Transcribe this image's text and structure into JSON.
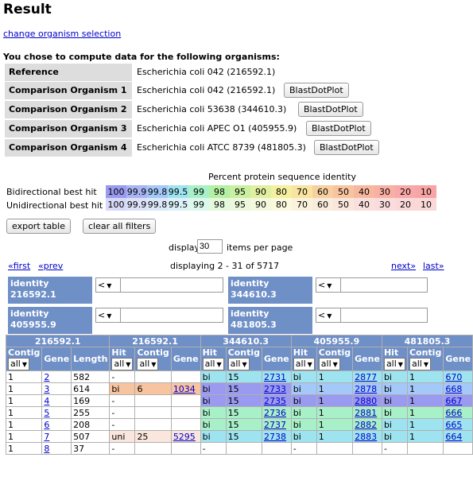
{
  "title": "Result",
  "change_link": "change organism selection",
  "intro": "You chose to compute data for the following organisms:",
  "organisms": [
    {
      "label": "Reference",
      "name": "Escherichia coli 042 (216592.1)",
      "button": ""
    },
    {
      "label": "Comparison Organism 1",
      "name": "Escherichia coli 042 (216592.1)",
      "button": "BlastDotPlot"
    },
    {
      "label": "Comparison Organism 2",
      "name": "Escherichia coli 53638 (344610.3)",
      "button": "BlastDotPlot"
    },
    {
      "label": "Comparison Organism 3",
      "name": "Escherichia coli APEC O1 (405955.9)",
      "button": "BlastDotPlot"
    },
    {
      "label": "Comparison Organism 4",
      "name": "Escherichia coli ATCC 8739 (481805.3)",
      "button": "BlastDotPlot"
    }
  ],
  "scale_title": "Percent protein sequence identity",
  "bidirectional_label": "Bidirectional best hit",
  "unidirectional_label": "Unidirectional best hit",
  "scale_values": [
    "100",
    "99.9",
    "99.8",
    "99.5",
    "99",
    "98",
    "95",
    "90",
    "80",
    "70",
    "60",
    "50",
    "40",
    "30",
    "20",
    "10"
  ],
  "bi_colors": [
    "#9a9af0",
    "#a8b4f4",
    "#a4c8f8",
    "#9ee4f0",
    "#a8f0c8",
    "#b4f0a4",
    "#c8f0a0",
    "#e0f0a0",
    "#f4f0a0",
    "#f8e4a0",
    "#f8d0a0",
    "#f8c4a0",
    "#f8b8a0",
    "#f8b0a4",
    "#f8a8a8",
    "#f8a4a4"
  ],
  "uni_colors": [
    "#d8d8f8",
    "#dce0f8",
    "#dce8fa",
    "#dcf2f8",
    "#dcf8ec",
    "#e4f8dc",
    "#ecf8dc",
    "#f4f8dc",
    "#fafadc",
    "#faf2dc",
    "#faecdc",
    "#fae6dc",
    "#fae0dc",
    "#fadcdc",
    "#fad8d8",
    "#fad8d8"
  ],
  "export_button": "export table",
  "clear_button": "clear all filters",
  "display_label": "display",
  "display_value": "30",
  "items_label": "items per page",
  "first_link": "«first",
  "prev_link": "«prev",
  "displaying_text": "displaying 2 - 31 of 5717",
  "next_link": "next»",
  "last_link": "last»",
  "filters": [
    {
      "label": "identity 216592.1",
      "op": "<"
    },
    {
      "label": "identity 344610.3",
      "op": "<"
    },
    {
      "label": "identity 405955.9",
      "op": "<"
    },
    {
      "label": "identity 481805.3",
      "op": "<"
    }
  ],
  "table": {
    "group_headers": [
      "216592.1",
      "216592.1",
      "344610.3",
      "405955.9",
      "481805.3"
    ],
    "sub_headers": [
      "Contig",
      "Gene",
      "Length",
      "Hit",
      "Contig",
      "Gene",
      "Hit",
      "Contig",
      "Gene",
      "Hit",
      "Contig",
      "Gene",
      "Hit",
      "Contig",
      "Gene"
    ],
    "select_value": "all",
    "rows": [
      {
        "contig": "1",
        "gene": "2",
        "length": "582",
        "c1": [
          "-",
          "",
          ""
        ],
        "c2": [
          "bi",
          "15",
          "2731"
        ],
        "c3": [
          "bi",
          "1",
          "2877"
        ],
        "c4": [
          "bi",
          "1",
          "670"
        ]
      },
      {
        "contig": "1",
        "gene": "3",
        "length": "614",
        "c1": [
          "bi",
          "6",
          "1034"
        ],
        "c2": [
          "bi",
          "15",
          "2733"
        ],
        "c3": [
          "bi",
          "1",
          "2878"
        ],
        "c4": [
          "bi",
          "1",
          "668"
        ]
      },
      {
        "contig": "1",
        "gene": "4",
        "length": "169",
        "c1": [
          "-",
          "",
          ""
        ],
        "c2": [
          "bi",
          "15",
          "2735"
        ],
        "c3": [
          "bi",
          "1",
          "2880"
        ],
        "c4": [
          "bi",
          "1",
          "667"
        ]
      },
      {
        "contig": "1",
        "gene": "5",
        "length": "255",
        "c1": [
          "-",
          "",
          ""
        ],
        "c2": [
          "bi",
          "15",
          "2736"
        ],
        "c3": [
          "bi",
          "1",
          "2881"
        ],
        "c4": [
          "bi",
          "1",
          "666"
        ]
      },
      {
        "contig": "1",
        "gene": "6",
        "length": "208",
        "c1": [
          "-",
          "",
          ""
        ],
        "c2": [
          "bi",
          "15",
          "2737"
        ],
        "c3": [
          "bi",
          "1",
          "2882"
        ],
        "c4": [
          "bi",
          "1",
          "665"
        ]
      },
      {
        "contig": "1",
        "gene": "7",
        "length": "507",
        "c1": [
          "uni",
          "25",
          "5295"
        ],
        "c2": [
          "bi",
          "15",
          "2738"
        ],
        "c3": [
          "bi",
          "1",
          "2883"
        ],
        "c4": [
          "bi",
          "1",
          "664"
        ]
      },
      {
        "contig": "1",
        "gene": "8",
        "length": "37",
        "c1": [
          "-",
          "",
          ""
        ],
        "c2": [
          "-",
          "",
          ""
        ],
        "c3": [
          "-",
          "",
          ""
        ],
        "c4": [
          "-",
          "",
          ""
        ]
      }
    ],
    "row_colors": [
      {
        "c1": "#ffffff",
        "c2": "#9ee4f0",
        "c3": "#9ee4f0",
        "c4": "#9ee4f0"
      },
      {
        "c1": "#f8c4a0",
        "c2": "#9a9af0",
        "c3": "#a4c8f8",
        "c4": "#a4c8f8"
      },
      {
        "c1": "#ffffff",
        "c2": "#9a9af0",
        "c3": "#9a9af0",
        "c4": "#9a9af0"
      },
      {
        "c1": "#ffffff",
        "c2": "#a8f0c8",
        "c3": "#a8f0c8",
        "c4": "#a8f0c8"
      },
      {
        "c1": "#ffffff",
        "c2": "#a8f0c8",
        "c3": "#a8f0c8",
        "c4": "#9ee4f0"
      },
      {
        "c1": "#fae6dc",
        "c2": "#9ee4f0",
        "c3": "#9ee4f0",
        "c4": "#9ee4f0"
      },
      {
        "c1": "#ffffff",
        "c2": "#ffffff",
        "c3": "#ffffff",
        "c4": "#ffffff"
      }
    ]
  }
}
